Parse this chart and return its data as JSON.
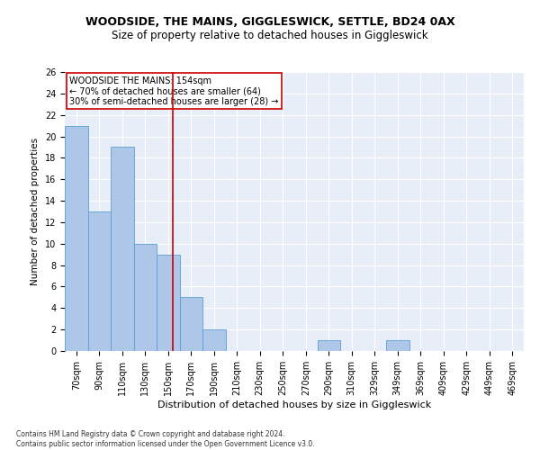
{
  "title": "WOODSIDE, THE MAINS, GIGGLESWICK, SETTLE, BD24 0AX",
  "subtitle": "Size of property relative to detached houses in Giggleswick",
  "xlabel": "Distribution of detached houses by size in Giggleswick",
  "ylabel": "Number of detached properties",
  "footnote": "Contains HM Land Registry data © Crown copyright and database right 2024.\nContains public sector information licensed under the Open Government Licence v3.0.",
  "categories": [
    "70sqm",
    "90sqm",
    "110sqm",
    "130sqm",
    "150sqm",
    "170sqm",
    "190sqm",
    "210sqm",
    "230sqm",
    "250sqm",
    "270sqm",
    "290sqm",
    "310sqm",
    "329sqm",
    "349sqm",
    "369sqm",
    "409sqm",
    "429sqm",
    "449sqm",
    "469sqm"
  ],
  "values": [
    21,
    13,
    19,
    10,
    9,
    5,
    2,
    0,
    0,
    0,
    0,
    1,
    0,
    0,
    1,
    0,
    0,
    0,
    0,
    0
  ],
  "bar_color": "#aec6e8",
  "bar_edgecolor": "#5a9fd4",
  "vline_color": "#cc0000",
  "ylim": [
    0,
    26
  ],
  "ytick_step": 2,
  "annotation_text": "WOODSIDE THE MAINS: 154sqm\n← 70% of detached houses are smaller (64)\n30% of semi-detached houses are larger (28) →",
  "annotation_box_color": "#cc0000",
  "bg_color": "#e8eef8",
  "title_fontsize": 9,
  "subtitle_fontsize": 8.5,
  "tick_fontsize": 7,
  "annot_fontsize": 7,
  "ylabel_fontsize": 7.5,
  "xlabel_fontsize": 8
}
